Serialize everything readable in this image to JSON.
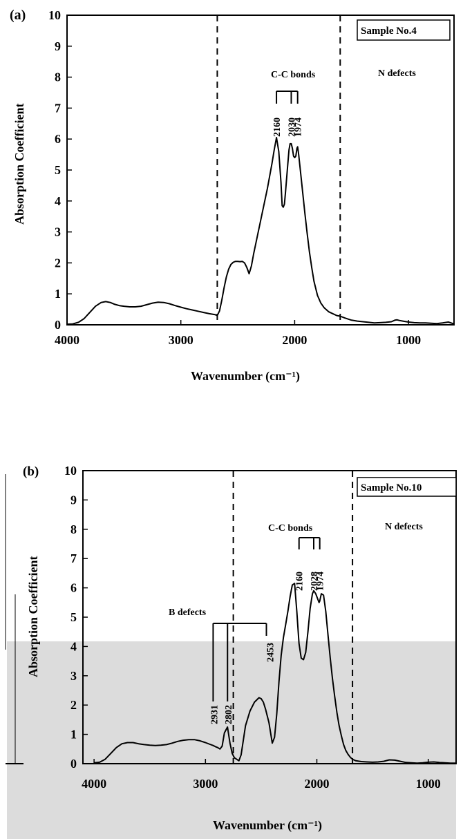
{
  "chart_data": [
    {
      "type": "line",
      "panel_label": "(a)",
      "sample_label": "Sample No.4",
      "xlabel": "Wavenumber (cm⁻¹)",
      "ylabel": "Absorption Coefficient",
      "xlim": [
        4000,
        600
      ],
      "ylim": [
        0,
        10
      ],
      "x_ticks": [
        "4000",
        "3000",
        "2000",
        "1000"
      ],
      "y_ticks": [
        "0",
        "1",
        "2",
        "3",
        "4",
        "5",
        "6",
        "7",
        "8",
        "9",
        "10"
      ],
      "region_labels": [
        "C-C bonds",
        "N defects"
      ],
      "region_dividers": [
        2680,
        1600
      ],
      "peak_labels": [
        "2160",
        "2030",
        "1974"
      ],
      "series": [
        {
          "x": [
            4000,
            3950,
            3900,
            3850,
            3800,
            3750,
            3700,
            3660,
            3620,
            3580,
            3540,
            3500,
            3450,
            3400,
            3350,
            3300,
            3250,
            3200,
            3150,
            3100,
            3050,
            3000,
            2950,
            2900,
            2850,
            2800,
            2750,
            2700,
            2680,
            2660,
            2640,
            2620,
            2600,
            2580,
            2560,
            2540,
            2520,
            2500,
            2480,
            2460,
            2440,
            2420,
            2400,
            2380,
            2360,
            2340,
            2320,
            2300,
            2280,
            2260,
            2240,
            2220,
            2200,
            2180,
            2160,
            2140,
            2120,
            2110,
            2100,
            2090,
            2080,
            2060,
            2050,
            2040,
            2030,
            2020,
            2010,
            2000,
            1990,
            1980,
            1974,
            1965,
            1950,
            1930,
            1910,
            1890,
            1870,
            1850,
            1830,
            1800,
            1770,
            1740,
            1700,
            1660,
            1630,
            1600,
            1560,
            1500,
            1450,
            1400,
            1350,
            1300,
            1250,
            1200,
            1150,
            1120,
            1100,
            1080,
            1050,
            1000,
            950,
            900,
            850,
            800,
            750,
            700,
            650,
            600
          ],
          "y": [
            0.02,
            0.03,
            0.08,
            0.2,
            0.4,
            0.6,
            0.72,
            0.75,
            0.72,
            0.66,
            0.62,
            0.6,
            0.58,
            0.58,
            0.6,
            0.65,
            0.7,
            0.73,
            0.72,
            0.68,
            0.62,
            0.57,
            0.52,
            0.48,
            0.44,
            0.4,
            0.36,
            0.33,
            0.3,
            0.45,
            0.8,
            1.2,
            1.55,
            1.8,
            1.95,
            2.02,
            2.05,
            2.05,
            2.04,
            2.05,
            2.0,
            1.85,
            1.65,
            1.9,
            2.3,
            2.65,
            3.0,
            3.35,
            3.7,
            4.05,
            4.4,
            4.8,
            5.2,
            5.65,
            6.05,
            5.6,
            4.6,
            3.85,
            3.8,
            3.9,
            4.3,
            5.2,
            5.65,
            5.85,
            5.85,
            5.7,
            5.45,
            5.4,
            5.45,
            5.7,
            5.75,
            5.5,
            5.0,
            4.3,
            3.6,
            2.95,
            2.35,
            1.85,
            1.4,
            0.95,
            0.7,
            0.55,
            0.42,
            0.35,
            0.3,
            0.28,
            0.22,
            0.15,
            0.12,
            0.1,
            0.08,
            0.06,
            0.07,
            0.08,
            0.1,
            0.15,
            0.16,
            0.14,
            0.12,
            0.09,
            0.07,
            0.06,
            0.06,
            0.05,
            0.04,
            0.06,
            0.09,
            0.03
          ]
        }
      ]
    },
    {
      "type": "line",
      "panel_label": "(b)",
      "sample_label": "Sample No.10",
      "xlabel": "Wavenumber (cm⁻¹)",
      "ylabel": "Absorption Coefficient",
      "xlim": [
        4100,
        750
      ],
      "ylim": [
        0,
        10
      ],
      "x_ticks": [
        "4000",
        "3000",
        "2000",
        "1000"
      ],
      "y_ticks": [
        "0",
        "1",
        "2",
        "3",
        "4",
        "5",
        "6",
        "7",
        "8",
        "9",
        "10"
      ],
      "region_labels": [
        "B defects",
        "C-C bonds",
        "N defects"
      ],
      "region_dividers": [
        2750,
        1680
      ],
      "peak_labels": [
        "2931",
        "2802",
        "2453",
        "2160",
        "2028",
        "1974"
      ],
      "series": [
        {
          "x": [
            4000,
            3950,
            3900,
            3850,
            3800,
            3750,
            3700,
            3650,
            3600,
            3550,
            3500,
            3450,
            3400,
            3350,
            3300,
            3250,
            3200,
            3150,
            3100,
            3050,
            3000,
            2960,
            2931,
            2910,
            2890,
            2870,
            2850,
            2830,
            2802,
            2780,
            2760,
            2740,
            2720,
            2700,
            2680,
            2660,
            2640,
            2600,
            2560,
            2520,
            2500,
            2480,
            2460,
            2430,
            2400,
            2380,
            2360,
            2340,
            2320,
            2300,
            2280,
            2260,
            2240,
            2220,
            2200,
            2180,
            2160,
            2140,
            2120,
            2100,
            2080,
            2060,
            2040,
            2028,
            2010,
            1990,
            1980,
            1974,
            1960,
            1940,
            1920,
            1900,
            1880,
            1860,
            1840,
            1820,
            1800,
            1780,
            1760,
            1740,
            1720,
            1700,
            1680,
            1650,
            1600,
            1550,
            1500,
            1450,
            1400,
            1350,
            1300,
            1250,
            1200,
            1150,
            1100,
            1050,
            1000,
            950,
            900,
            850,
            800,
            750
          ],
          "y": [
            0.03,
            0.05,
            0.15,
            0.35,
            0.55,
            0.68,
            0.72,
            0.72,
            0.68,
            0.65,
            0.63,
            0.62,
            0.63,
            0.65,
            0.7,
            0.76,
            0.8,
            0.82,
            0.82,
            0.78,
            0.72,
            0.66,
            0.62,
            0.58,
            0.55,
            0.5,
            0.6,
            1.05,
            1.25,
            0.7,
            0.35,
            0.2,
            0.15,
            0.1,
            0.3,
            0.8,
            1.3,
            1.8,
            2.1,
            2.25,
            2.22,
            2.1,
            1.85,
            1.4,
            0.7,
            0.9,
            1.7,
            2.8,
            3.7,
            4.3,
            4.75,
            5.2,
            5.7,
            6.1,
            6.15,
            5.2,
            4.1,
            3.6,
            3.55,
            3.8,
            4.5,
            5.3,
            5.8,
            5.9,
            5.8,
            5.6,
            5.5,
            5.55,
            5.8,
            5.75,
            5.2,
            4.4,
            3.6,
            2.9,
            2.3,
            1.75,
            1.3,
            0.95,
            0.65,
            0.45,
            0.32,
            0.22,
            0.15,
            0.1,
            0.07,
            0.06,
            0.05,
            0.06,
            0.08,
            0.13,
            0.12,
            0.08,
            0.04,
            0.03,
            0.02,
            0.03,
            0.05,
            0.06,
            0.04,
            0.03,
            0.02,
            0.02
          ]
        }
      ]
    }
  ]
}
